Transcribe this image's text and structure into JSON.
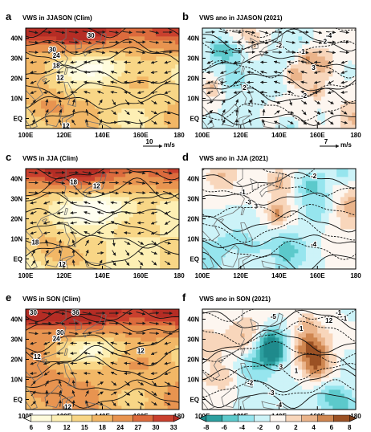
{
  "colors": {
    "clim": [
      "#fefbdc",
      "#fdefb4",
      "#f8d686",
      "#f2b766",
      "#e89450",
      "#dc6b3d",
      "#c9402e"
    ],
    "ano": [
      "#2c9f9f",
      "#5cc9cb",
      "#96e5ee",
      "#cdf3f8",
      "#fdf6f0",
      "#f8d6bb",
      "#eab48b",
      "#cf8650",
      "#9b5124"
    ],
    "contour": "#111111",
    "land": "#6f6f6f",
    "arrow": "#1a1a1a"
  },
  "chart_data": [
    {
      "type": "heatmap",
      "panel": "a",
      "title": "VWS in JJASON (Clim)",
      "field": "clim",
      "x_ticks": [
        "100E",
        "120E",
        "140E",
        "160E",
        "180"
      ],
      "y_ticks": [
        "EQ",
        "10N",
        "20N",
        "30N",
        "40N"
      ],
      "xlim": [
        100,
        180
      ],
      "ylim": [
        -5,
        45
      ],
      "contour_labels": [
        {
          "text": "30",
          "lon": 134,
          "lat": 41
        },
        {
          "text": "30",
          "lon": 114,
          "lat": 34
        },
        {
          "text": "24",
          "lon": 116,
          "lat": 31
        },
        {
          "text": "18",
          "lon": 116,
          "lat": 26
        },
        {
          "text": "12",
          "lon": 118,
          "lat": 20
        },
        {
          "text": "12",
          "lon": 121,
          "lat": -4
        }
      ],
      "vector_ref": {
        "label": "10",
        "unit": "m/s"
      }
    },
    {
      "type": "heatmap",
      "panel": "b",
      "title": "VWS ano in JJASON (2021)",
      "field": "ano",
      "x_ticks": [
        "100E",
        "120E",
        "140E",
        "160E",
        "180"
      ],
      "y_ticks": [
        "EQ",
        "10N",
        "20N",
        "30N",
        "40N"
      ],
      "xlim": [
        100,
        180
      ],
      "ylim": [
        -5,
        45
      ],
      "contour_labels": [
        {
          "text": "-4",
          "lon": 166,
          "lat": 41
        },
        {
          "text": "-1",
          "lon": 152,
          "lat": 33
        },
        {
          "text": "3",
          "lon": 158,
          "lat": 25
        },
        {
          "text": "-2",
          "lon": 140,
          "lat": 36
        },
        {
          "text": "2",
          "lon": 122,
          "lat": 15
        },
        {
          "text": "-2",
          "lon": 153,
          "lat": 11
        },
        {
          "text": "2",
          "lon": 164,
          "lat": 38
        }
      ],
      "vector_ref": {
        "label": "7",
        "unit": "m/s"
      }
    },
    {
      "type": "heatmap",
      "panel": "c",
      "title": "VWS in JJA (Clim)",
      "field": "clim",
      "x_ticks": [
        "100E",
        "120E",
        "140E",
        "160E",
        "180"
      ],
      "y_ticks": [
        "EQ",
        "10N",
        "20N",
        "30N",
        "40N"
      ],
      "xlim": [
        100,
        180
      ],
      "ylim": [
        -5,
        45
      ],
      "contour_labels": [
        {
          "text": "18",
          "lon": 125,
          "lat": 38
        },
        {
          "text": "12",
          "lon": 137,
          "lat": 36
        },
        {
          "text": "18",
          "lon": 105,
          "lat": 8
        },
        {
          "text": "12",
          "lon": 119,
          "lat": -3
        }
      ]
    },
    {
      "type": "heatmap",
      "panel": "d",
      "title": "VWS ano in JJA (2021)",
      "field": "ano",
      "x_ticks": [
        "100E",
        "120E",
        "140E",
        "160E",
        "180"
      ],
      "y_ticks": [
        "EQ",
        "10N",
        "20N",
        "30N",
        "40N"
      ],
      "xlim": [
        100,
        180
      ],
      "ylim": [
        -5,
        45
      ],
      "contour_labels": [
        {
          "text": "-1",
          "lon": 121,
          "lat": 33
        },
        {
          "text": "-3",
          "lon": 124,
          "lat": 28
        },
        {
          "text": "3",
          "lon": 128,
          "lat": 26
        },
        {
          "text": "-4",
          "lon": 158,
          "lat": 7
        },
        {
          "text": "-2",
          "lon": 158,
          "lat": 41
        }
      ]
    },
    {
      "type": "heatmap",
      "panel": "e",
      "title": "VWS in SON (Clim)",
      "field": "clim",
      "x_ticks": [
        "100E",
        "120E",
        "140E",
        "160E",
        "180"
      ],
      "y_ticks": [
        "EQ",
        "10N",
        "20N",
        "30N",
        "40N"
      ],
      "xlim": [
        100,
        180
      ],
      "ylim": [
        -5,
        45
      ],
      "contour_labels": [
        {
          "text": "30",
          "lon": 104,
          "lat": 43
        },
        {
          "text": "36",
          "lon": 126,
          "lat": 43
        },
        {
          "text": "30",
          "lon": 118,
          "lat": 33
        },
        {
          "text": "24",
          "lon": 116,
          "lat": 30
        },
        {
          "text": "12",
          "lon": 106,
          "lat": 21
        },
        {
          "text": "12",
          "lon": 160,
          "lat": 24
        },
        {
          "text": "12",
          "lon": 122,
          "lat": -4
        }
      ]
    },
    {
      "type": "heatmap",
      "panel": "f",
      "title": "VWS ano in SON (2021)",
      "field": "ano",
      "x_ticks": [
        "100E",
        "120E",
        "140E",
        "160E",
        "180"
      ],
      "y_ticks": [
        "EQ",
        "10N",
        "20N",
        "30N",
        "40N"
      ],
      "xlim": [
        100,
        180
      ],
      "ylim": [
        -5,
        45
      ],
      "contour_labels": [
        {
          "text": "-5",
          "lon": 137,
          "lat": 41
        },
        {
          "text": "-1",
          "lon": 171,
          "lat": 43
        },
        {
          "text": "-1",
          "lon": 174,
          "lat": 40
        },
        {
          "text": "12",
          "lon": 166,
          "lat": 39
        },
        {
          "text": "-1",
          "lon": 151,
          "lat": 35
        },
        {
          "text": "3",
          "lon": 141,
          "lat": 16
        },
        {
          "text": "-2",
          "lon": 125,
          "lat": 8
        },
        {
          "text": "1",
          "lon": 149,
          "lat": 14
        },
        {
          "text": "-3",
          "lon": 136,
          "lat": 3
        },
        {
          "text": "-4",
          "lon": 140,
          "lat": -3
        }
      ]
    }
  ],
  "colorbars": [
    {
      "name": "clim",
      "tick_labels": [
        "6",
        "9",
        "12",
        "15",
        "18",
        "24",
        "27",
        "30",
        "33"
      ]
    },
    {
      "name": "ano",
      "tick_labels": [
        "-8",
        "-6",
        "-4",
        "-2",
        "0",
        "2",
        "4",
        "6",
        "8"
      ]
    }
  ]
}
